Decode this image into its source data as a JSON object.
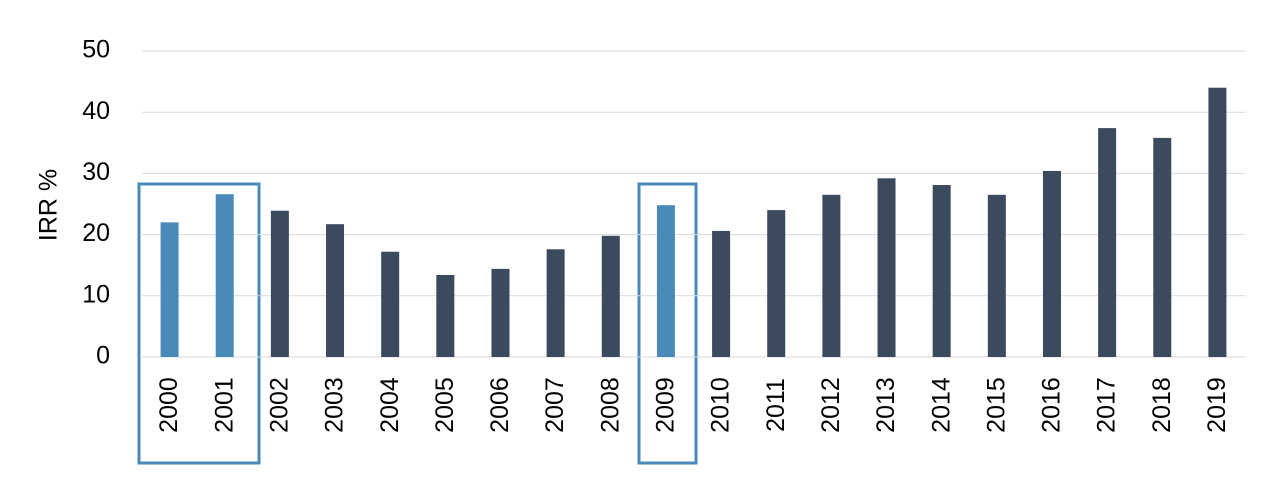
{
  "chart_data": {
    "type": "bar",
    "y_label": "IRR %",
    "categories": [
      "2000",
      "2001",
      "2002",
      "2003",
      "2004",
      "2005",
      "2006",
      "2007",
      "2008",
      "2009",
      "2010",
      "2011",
      "2012",
      "2013",
      "2014",
      "2015",
      "2016",
      "2017",
      "2018",
      "2019"
    ],
    "values": [
      22,
      26.6,
      23.9,
      21.7,
      17.2,
      13.4,
      14.4,
      17.6,
      19.8,
      24.8,
      20.6,
      24,
      26.5,
      29.2,
      28.1,
      26.5,
      30.4,
      37.4,
      35.8,
      44
    ],
    "colors": [
      "#4a8ab8",
      "#4a8ab8",
      "#3b4a5c",
      "#3b4a5c",
      "#3b4a5c",
      "#3b4a5c",
      "#3b4a5c",
      "#3b4a5c",
      "#3b4a5c",
      "#4a8ab8",
      "#3b4a5c",
      "#3b4a5c",
      "#3b4a5c",
      "#3b4a5c",
      "#3b4a5c",
      "#3b4a5c",
      "#3b4a5c",
      "#3b4a5c",
      "#3b4a5c",
      "#3b4a5c"
    ],
    "ylim": [
      0,
      50
    ],
    "yticks": [
      0,
      10,
      20,
      30,
      40,
      50
    ],
    "grid": true
  }
}
